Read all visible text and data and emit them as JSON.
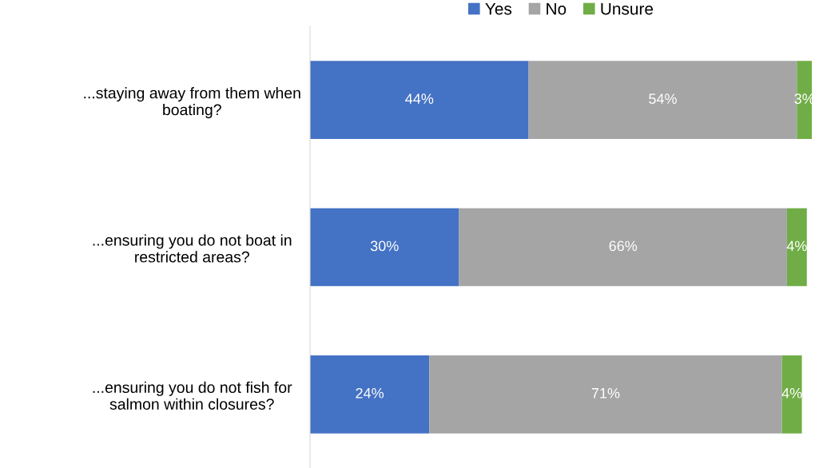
{
  "chart_data": {
    "type": "bar",
    "orientation": "horizontal",
    "stacked": true,
    "categories": [
      "...staying away from them when\nboating?",
      "...ensuring you do not boat in\nrestricted areas?",
      "...ensuring you do not fish for\nsalmon within closures?"
    ],
    "series": [
      {
        "name": "Yes",
        "color": "#4472c4",
        "values": [
          44,
          30,
          24
        ],
        "value_labels": [
          "44%",
          "30%",
          "24%"
        ]
      },
      {
        "name": "No",
        "color": "#a5a5a5",
        "values": [
          54,
          66,
          71
        ],
        "value_labels": [
          "54%",
          "66%",
          "71%"
        ]
      },
      {
        "name": "Unsure",
        "color": "#70ad47",
        "values": [
          3,
          4,
          4
        ],
        "value_labels": [
          "3%",
          "4%",
          "4%"
        ]
      }
    ],
    "xlim": [
      0,
      101
    ],
    "tick_labels": "y",
    "grid": false,
    "legend": "top"
  }
}
